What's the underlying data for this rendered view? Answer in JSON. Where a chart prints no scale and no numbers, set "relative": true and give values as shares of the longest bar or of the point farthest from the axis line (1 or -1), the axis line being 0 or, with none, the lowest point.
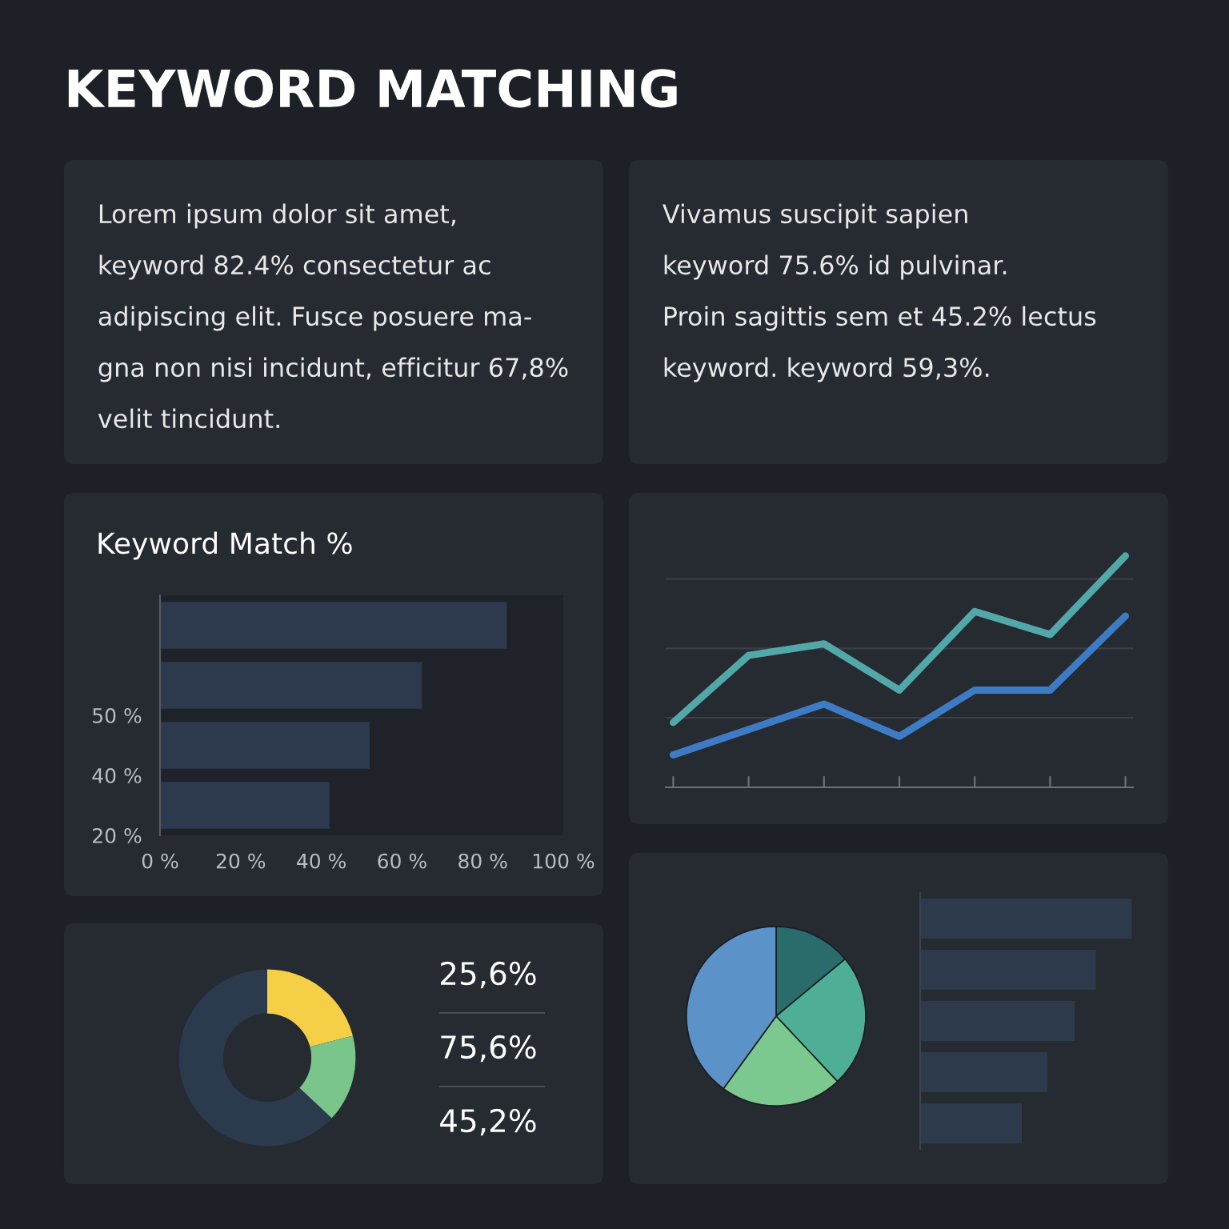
{
  "chart_data": [
    {
      "type": "other",
      "title": "KEYWORD MATCHING",
      "annotations": [
        "Lorem ipsum dolor sit amet,",
        "keyword 82.4% consectetur ac",
        "adipiscing elit. Fusce posuere ma-",
        "gna non nisi incidunt, efficitur 67,8%",
        "velit tincidunt."
      ]
    },
    {
      "type": "other",
      "annotations": [
        "Vivamus suscipit sapien",
        "keyword 75.6% id pulvinar.",
        "Proin sagittis sem et 45.2% lectus",
        "keyword. keyword 59,3%."
      ]
    },
    {
      "type": "bar",
      "orientation": "horizontal",
      "title": "Keyword Match %",
      "categories": [
        null,
        "50 %",
        "40 %",
        "20 %"
      ],
      "values": [
        86,
        65,
        52,
        42
      ],
      "color": "#2d3a4d",
      "xlim": [
        0,
        100
      ],
      "xticks": [
        {
          "value": 0,
          "label": "0 %"
        },
        {
          "value": 20,
          "label": "20 %"
        },
        {
          "value": 40,
          "label": "40 %"
        },
        {
          "value": 60,
          "label": "60 %"
        },
        {
          "value": 80,
          "label": "80 %"
        },
        {
          "value": 100,
          "label": "100 %"
        }
      ]
    },
    {
      "type": "line",
      "relative": true,
      "grid": "y",
      "categories": [
        null,
        null,
        null,
        null,
        null,
        null,
        null
      ],
      "series": [
        {
          "color": "#52a8a8",
          "values": [
            0.28,
            0.57,
            0.62,
            0.42,
            0.76,
            0.66,
            1
          ]
        },
        {
          "color": "#3d7cc4",
          "values": [
            0.14,
            0.25,
            0.36,
            0.22,
            0.42,
            0.42,
            0.74
          ]
        }
      ]
    },
    {
      "type": "donut",
      "categories": [
        null,
        null,
        null
      ],
      "values": [
        21,
        16,
        63
      ],
      "colors": [
        "#f5cf45",
        "#79c58a",
        "#2b3a4d"
      ],
      "annotations": [
        "25,6%",
        "75,6%",
        "45,2%"
      ]
    },
    {
      "type": "pie",
      "categories": [
        null,
        null,
        null,
        null
      ],
      "values": [
        14,
        24,
        22,
        40
      ],
      "colors": [
        "#2a6b6b",
        "#4fae96",
        "#7cc98f",
        "#5b93c9"
      ]
    },
    {
      "type": "bar",
      "orientation": "horizontal",
      "relative": true,
      "categories": [
        null,
        null,
        null,
        null,
        null
      ],
      "values": [
        1,
        0.83,
        0.73,
        0.6,
        0.48
      ],
      "color": "#2d3a4b"
    }
  ]
}
